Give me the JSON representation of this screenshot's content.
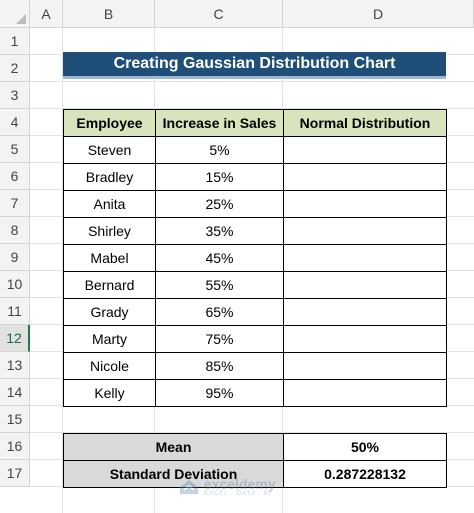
{
  "columns": [
    "A",
    "B",
    "C",
    "D"
  ],
  "rows": [
    "1",
    "2",
    "3",
    "4",
    "5",
    "6",
    "7",
    "8",
    "9",
    "10",
    "11",
    "12",
    "13",
    "14",
    "15",
    "16",
    "17"
  ],
  "selected_row": "12",
  "title": "Creating Gaussian Distribution Chart",
  "table": {
    "headers": [
      "Employee",
      "Increase in Sales",
      "Normal Distribution"
    ],
    "rows": [
      {
        "employee": "Steven",
        "increase": "5%",
        "normal": ""
      },
      {
        "employee": "Bradley",
        "increase": "15%",
        "normal": ""
      },
      {
        "employee": "Anita",
        "increase": "25%",
        "normal": ""
      },
      {
        "employee": "Shirley",
        "increase": "35%",
        "normal": ""
      },
      {
        "employee": "Mabel",
        "increase": "45%",
        "normal": ""
      },
      {
        "employee": "Bernard",
        "increase": "55%",
        "normal": ""
      },
      {
        "employee": "Grady",
        "increase": "65%",
        "normal": ""
      },
      {
        "employee": "Marty",
        "increase": "75%",
        "normal": ""
      },
      {
        "employee": "Nicole",
        "increase": "85%",
        "normal": ""
      },
      {
        "employee": "Kelly",
        "increase": "95%",
        "normal": ""
      }
    ]
  },
  "summary": {
    "mean_label": "Mean",
    "mean_value": "50%",
    "sd_label": "Standard Deviation",
    "sd_value": "0.287228132"
  },
  "watermark": {
    "main": "exceldemy",
    "sub": "EXCEL · DATA · BI"
  },
  "colors": {
    "title_bg": "#1f4e79",
    "header_bg": "#d8e4bc",
    "summary_bg": "#d9d9d9"
  }
}
